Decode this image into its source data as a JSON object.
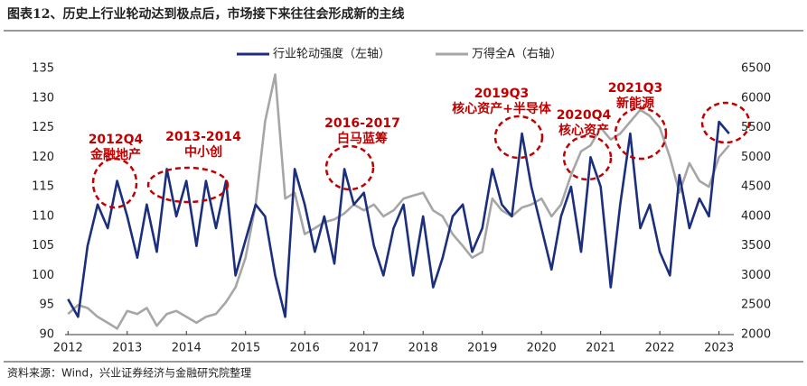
{
  "chart_data": {
    "type": "line",
    "title": "图表12、历史上行业轮动达到极点后，市场接下来往往会形成新的主线",
    "source": "资料来源：Wind，兴业证券经济与金融研究院整理",
    "x": [
      2012,
      2012.17,
      2012.33,
      2012.5,
      2012.67,
      2012.83,
      2013,
      2013.17,
      2013.33,
      2013.5,
      2013.67,
      2013.83,
      2014,
      2014.17,
      2014.33,
      2014.5,
      2014.67,
      2014.83,
      2015,
      2015.17,
      2015.33,
      2015.5,
      2015.67,
      2015.83,
      2016,
      2016.17,
      2016.33,
      2016.5,
      2016.67,
      2016.83,
      2017,
      2017.17,
      2017.33,
      2017.5,
      2017.67,
      2017.83,
      2018,
      2018.17,
      2018.33,
      2018.5,
      2018.67,
      2018.83,
      2019,
      2019.17,
      2019.33,
      2019.5,
      2019.67,
      2019.83,
      2020,
      2020.17,
      2020.33,
      2020.5,
      2020.67,
      2020.83,
      2021,
      2021.17,
      2021.33,
      2021.5,
      2021.67,
      2021.83,
      2022,
      2022.17,
      2022.33,
      2022.5,
      2022.67,
      2022.83,
      2023,
      2023.17
    ],
    "series": [
      {
        "name": "行业轮动强度（左轴）",
        "color": "#1b2f7d",
        "axis": "y",
        "values": [
          96,
          93,
          105,
          112,
          108,
          116,
          110,
          103,
          112,
          104,
          118,
          110,
          116,
          105,
          116,
          108,
          116,
          100,
          106,
          112,
          110,
          100,
          93,
          118,
          112,
          104,
          110,
          102,
          118,
          112,
          114,
          105,
          100,
          108,
          112,
          100,
          110,
          98,
          103,
          110,
          112,
          104,
          108,
          118,
          112,
          110,
          124,
          115,
          108,
          101,
          110,
          115,
          104,
          120,
          115,
          98,
          112,
          124,
          108,
          112,
          104,
          100,
          117,
          108,
          113,
          110,
          126,
          124
        ]
      },
      {
        "name": "万得全A（右轴）",
        "color": "#a6a6a6",
        "axis": "y2",
        "values": [
          2350,
          2500,
          2450,
          2300,
          2200,
          2100,
          2400,
          2350,
          2450,
          2150,
          2350,
          2400,
          2300,
          2200,
          2300,
          2350,
          2550,
          2800,
          3300,
          4200,
          5600,
          6400,
          4300,
          4400,
          3700,
          3800,
          3900,
          3950,
          4050,
          4200,
          4100,
          4200,
          4000,
          4100,
          4300,
          4350,
          4400,
          4100,
          4000,
          3700,
          3500,
          3300,
          3400,
          4300,
          4100,
          4000,
          4150,
          4200,
          4300,
          4000,
          4200,
          4700,
          5100,
          5200,
          5500,
          5300,
          5400,
          5600,
          5800,
          5700,
          5500,
          5000,
          4400,
          4900,
          4600,
          4500,
          5000,
          5200
        ]
      }
    ],
    "xlim": [
      2011.95,
      2023.25
    ],
    "xticks": [
      2012,
      2013,
      2014,
      2015,
      2016,
      2017,
      2018,
      2019,
      2020,
      2021,
      2022,
      2023
    ],
    "ylim": [
      90,
      135
    ],
    "yticks": [
      90,
      95,
      100,
      105,
      110,
      115,
      120,
      125,
      130,
      135
    ],
    "y2lim": [
      2000,
      6500
    ],
    "y2ticks": [
      2000,
      2500,
      3000,
      3500,
      4000,
      4500,
      5000,
      5500,
      6000,
      6500
    ],
    "annotations": [
      [
        "2012Q4",
        "金融地产"
      ],
      [
        "2013-2014",
        "中小创"
      ],
      [
        "2016-2017",
        "白马蓝筹"
      ],
      [
        "2019Q3",
        "核心资产+半导体"
      ],
      [
        "2020Q4",
        "核心资产"
      ],
      [
        "2021Q3",
        "新能源"
      ]
    ]
  }
}
